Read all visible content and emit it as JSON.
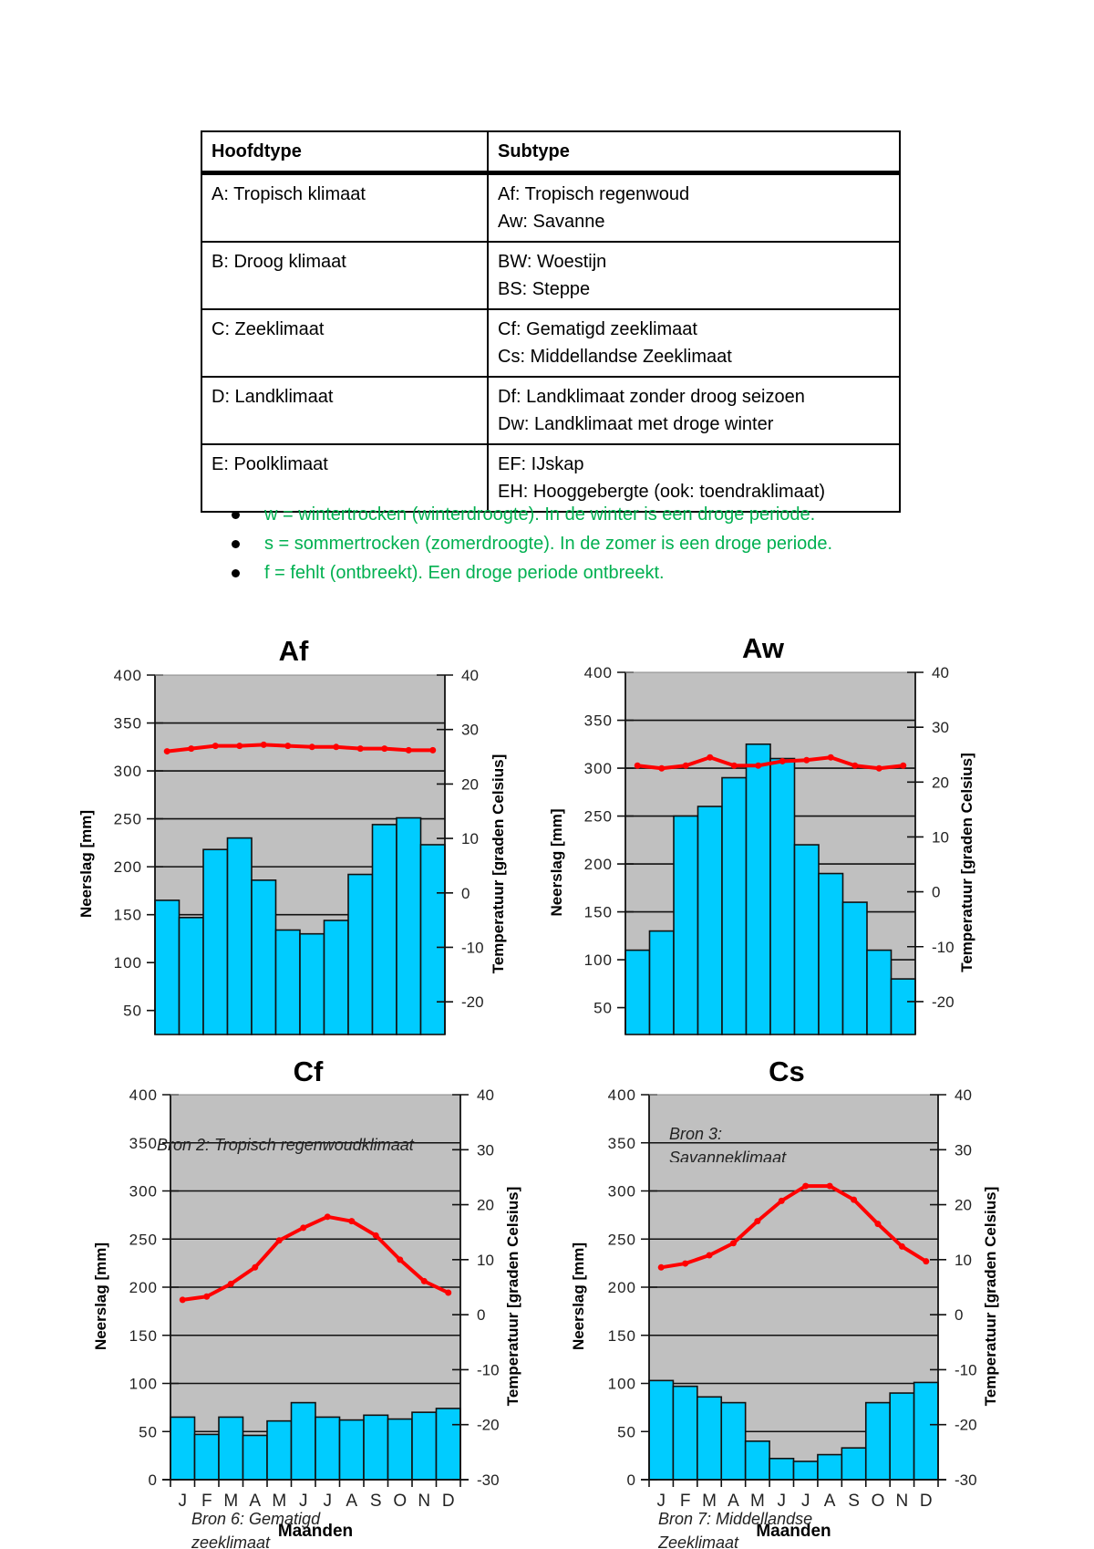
{
  "table": {
    "headers": [
      "Hoofdtype",
      "Subtype"
    ],
    "rows": [
      {
        "main": "A: Tropisch klimaat",
        "sub": [
          "Af: Tropisch regenwoud",
          "Aw: Savanne"
        ]
      },
      {
        "main": "B: Droog klimaat",
        "sub": [
          "BW: Woestijn",
          "BS: Steppe"
        ]
      },
      {
        "main": "C: Zeeklimaat",
        "sub": [
          "Cf: Gematigd zeeklimaat",
          "Cs: Middellandse Zeeklimaat"
        ]
      },
      {
        "main": "D: Landklimaat",
        "sub": [
          "Df: Landklimaat zonder droog seizoen",
          "Dw: Landklimaat met droge winter"
        ]
      },
      {
        "main": "E: Poolklimaat",
        "sub": [
          "EF: IJskap",
          "EH: Hooggebergte (ook: toendraklimaat)"
        ]
      }
    ]
  },
  "notes": [
    "w = wintertrocken (winterdroogte). In de winter is een droge periode.",
    "s = sommertrocken (zomerdroogte). In de zomer is een droge periode.",
    "f = fehlt (ontbreekt). Een droge periode ontbreekt."
  ],
  "colors": {
    "notes": "#00b050",
    "bars": "#00ccff",
    "temperature_line": "#ff0000",
    "plot_background": "#c0c0c0"
  },
  "chart_data": [
    {
      "type": "bar+line",
      "title": "Af",
      "ylabel": "Neerslag [mm]",
      "y2label": "Temperatuur [graden Celsius]",
      "ylim": [
        25,
        400
      ],
      "y2lim": [
        -26,
        40
      ],
      "yticks": [
        "50",
        "100",
        "150",
        "200",
        "250",
        "300",
        "350",
        "400"
      ],
      "y2ticks": [
        "-20",
        "-10",
        "0",
        "10",
        "20",
        "30",
        "40"
      ],
      "grid": true,
      "precipitation": [
        165,
        147,
        218,
        230,
        186,
        134,
        130,
        144,
        192,
        244,
        251,
        223
      ],
      "temperature": [
        26.0,
        26.5,
        27.0,
        27.0,
        27.2,
        27.0,
        26.8,
        26.8,
        26.5,
        26.5,
        26.2,
        26.2
      ]
    },
    {
      "type": "bar+line",
      "title": "Aw",
      "ylabel": "Neerslag [mm]",
      "y2label": "Temperatuur [graden Celsius]",
      "ylim": [
        22,
        400
      ],
      "y2lim": [
        -26,
        40
      ],
      "yticks": [
        "50",
        "100",
        "150",
        "200",
        "250",
        "300",
        "350",
        "400"
      ],
      "y2ticks": [
        "-20",
        "-10",
        "0",
        "10",
        "20",
        "30",
        "40"
      ],
      "grid": true,
      "precipitation": [
        110,
        130,
        250,
        260,
        290,
        325,
        310,
        220,
        190,
        160,
        110,
        80
      ],
      "temperature": [
        23.0,
        22.5,
        23.0,
        24.5,
        23.0,
        23.0,
        23.8,
        24.0,
        24.5,
        23.0,
        22.5,
        23.0
      ]
    },
    {
      "type": "bar+line",
      "title": "Cf",
      "ylabel": "Neerslag [mm]",
      "y2label": "Temperatuur [graden Celsius]",
      "xlabel": "Maanden",
      "categories": [
        "J",
        "F",
        "M",
        "A",
        "M",
        "J",
        "J",
        "A",
        "S",
        "O",
        "N",
        "D"
      ],
      "ylim": [
        0,
        400
      ],
      "y2lim": [
        -30,
        40
      ],
      "yticks": [
        "0",
        "50",
        "100",
        "150",
        "200",
        "250",
        "300",
        "350",
        "400"
      ],
      "y2ticks": [
        "-30",
        "-20",
        "-10",
        "0",
        "10",
        "20",
        "30",
        "40"
      ],
      "grid": true,
      "precipitation": [
        65,
        47,
        65,
        46,
        61,
        80,
        65,
        62,
        67,
        63,
        70,
        74
      ],
      "temperature": [
        2.7,
        3.3,
        5.6,
        8.6,
        13.5,
        15.8,
        17.8,
        17.0,
        14.4,
        10.0,
        6.1,
        4.0
      ],
      "annotation_top": "Bron 2: Tropisch regenwoudklimaat",
      "annotation_bottom": "Bron 6: Gematigd zeeklimaat"
    },
    {
      "type": "bar+line",
      "title": "Cs",
      "ylabel": "Neerslag [mm]",
      "y2label": "Temperatuur [graden Celsius]",
      "xlabel": "Maanden",
      "categories": [
        "J",
        "F",
        "M",
        "A",
        "M",
        "J",
        "J",
        "A",
        "S",
        "O",
        "N",
        "D"
      ],
      "ylim": [
        0,
        400
      ],
      "y2lim": [
        -30,
        40
      ],
      "yticks": [
        "0",
        "50",
        "100",
        "150",
        "200",
        "250",
        "300",
        "350",
        "400"
      ],
      "y2ticks": [
        "-30",
        "-20",
        "-10",
        "0",
        "10",
        "20",
        "30",
        "40"
      ],
      "grid": true,
      "precipitation": [
        103,
        97,
        86,
        80,
        40,
        22,
        19,
        26,
        33,
        80,
        90,
        101
      ],
      "temperature": [
        8.6,
        9.3,
        10.8,
        13.0,
        17.0,
        20.7,
        23.4,
        23.4,
        20.9,
        16.5,
        12.4,
        9.7
      ],
      "annotation_top": "Bron 3: Savanneklimaat",
      "annotation_bottom": "Bron 7: Middellandse Zeeklimaat"
    }
  ]
}
